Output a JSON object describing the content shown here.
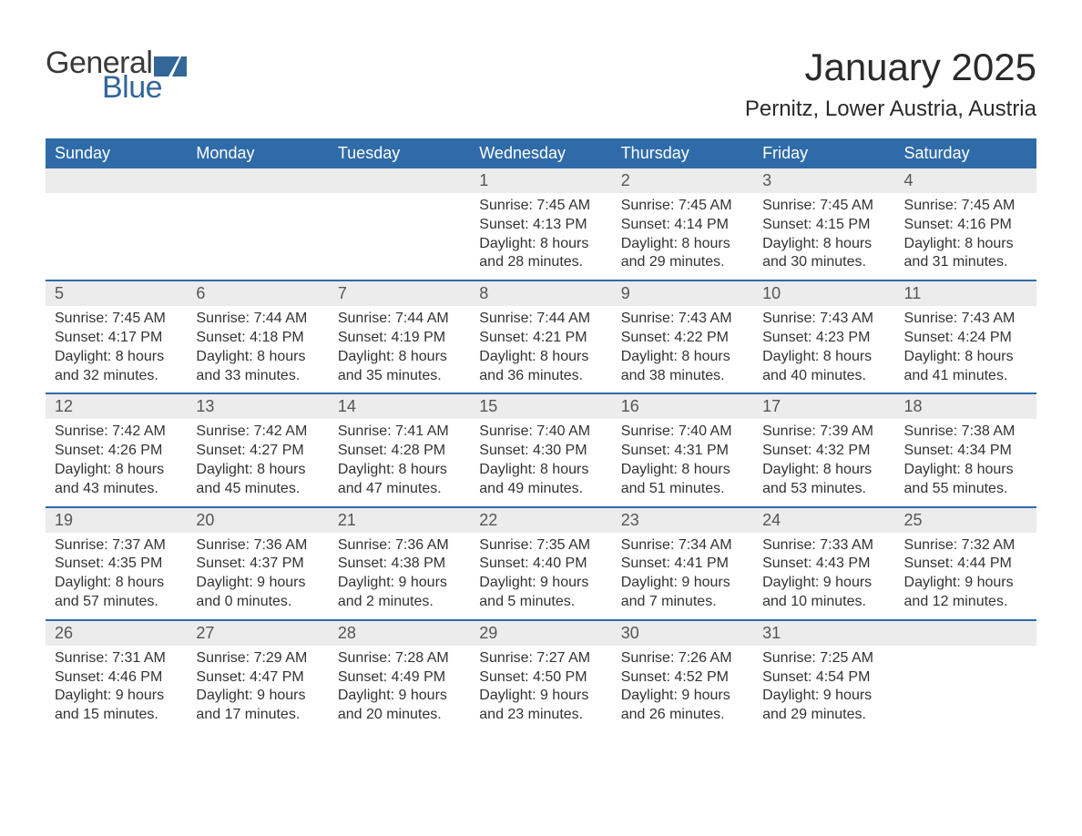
{
  "brand": {
    "word1": "General",
    "word2": "Blue",
    "word1_color": "#3a3a3a",
    "word2_color": "#336699",
    "icon_color": "#336699",
    "font_size": 34
  },
  "title": {
    "month": "January 2025",
    "location": "Pernitz, Lower Austria, Austria",
    "month_fontsize": 42,
    "location_fontsize": 24,
    "color": "#2a2a2a"
  },
  "styles": {
    "header_bg": "#2f6ba8",
    "header_text": "#ffffff",
    "daynum_bg": "#ececec",
    "daynum_text": "#555555",
    "week_divider": "#2f6ba8",
    "body_text": "#333333",
    "page_bg": "#ffffff",
    "weekday_fontsize": 18,
    "daynum_fontsize": 18,
    "detail_fontsize": 16
  },
  "weekdays": [
    "Sunday",
    "Monday",
    "Tuesday",
    "Wednesday",
    "Thursday",
    "Friday",
    "Saturday"
  ],
  "weeks": [
    [
      null,
      null,
      null,
      {
        "day": "1",
        "sunrise": "Sunrise: 7:45 AM",
        "sunset": "Sunset: 4:13 PM",
        "daylight": "Daylight: 8 hours and 28 minutes."
      },
      {
        "day": "2",
        "sunrise": "Sunrise: 7:45 AM",
        "sunset": "Sunset: 4:14 PM",
        "daylight": "Daylight: 8 hours and 29 minutes."
      },
      {
        "day": "3",
        "sunrise": "Sunrise: 7:45 AM",
        "sunset": "Sunset: 4:15 PM",
        "daylight": "Daylight: 8 hours and 30 minutes."
      },
      {
        "day": "4",
        "sunrise": "Sunrise: 7:45 AM",
        "sunset": "Sunset: 4:16 PM",
        "daylight": "Daylight: 8 hours and 31 minutes."
      }
    ],
    [
      {
        "day": "5",
        "sunrise": "Sunrise: 7:45 AM",
        "sunset": "Sunset: 4:17 PM",
        "daylight": "Daylight: 8 hours and 32 minutes."
      },
      {
        "day": "6",
        "sunrise": "Sunrise: 7:44 AM",
        "sunset": "Sunset: 4:18 PM",
        "daylight": "Daylight: 8 hours and 33 minutes."
      },
      {
        "day": "7",
        "sunrise": "Sunrise: 7:44 AM",
        "sunset": "Sunset: 4:19 PM",
        "daylight": "Daylight: 8 hours and 35 minutes."
      },
      {
        "day": "8",
        "sunrise": "Sunrise: 7:44 AM",
        "sunset": "Sunset: 4:21 PM",
        "daylight": "Daylight: 8 hours and 36 minutes."
      },
      {
        "day": "9",
        "sunrise": "Sunrise: 7:43 AM",
        "sunset": "Sunset: 4:22 PM",
        "daylight": "Daylight: 8 hours and 38 minutes."
      },
      {
        "day": "10",
        "sunrise": "Sunrise: 7:43 AM",
        "sunset": "Sunset: 4:23 PM",
        "daylight": "Daylight: 8 hours and 40 minutes."
      },
      {
        "day": "11",
        "sunrise": "Sunrise: 7:43 AM",
        "sunset": "Sunset: 4:24 PM",
        "daylight": "Daylight: 8 hours and 41 minutes."
      }
    ],
    [
      {
        "day": "12",
        "sunrise": "Sunrise: 7:42 AM",
        "sunset": "Sunset: 4:26 PM",
        "daylight": "Daylight: 8 hours and 43 minutes."
      },
      {
        "day": "13",
        "sunrise": "Sunrise: 7:42 AM",
        "sunset": "Sunset: 4:27 PM",
        "daylight": "Daylight: 8 hours and 45 minutes."
      },
      {
        "day": "14",
        "sunrise": "Sunrise: 7:41 AM",
        "sunset": "Sunset: 4:28 PM",
        "daylight": "Daylight: 8 hours and 47 minutes."
      },
      {
        "day": "15",
        "sunrise": "Sunrise: 7:40 AM",
        "sunset": "Sunset: 4:30 PM",
        "daylight": "Daylight: 8 hours and 49 minutes."
      },
      {
        "day": "16",
        "sunrise": "Sunrise: 7:40 AM",
        "sunset": "Sunset: 4:31 PM",
        "daylight": "Daylight: 8 hours and 51 minutes."
      },
      {
        "day": "17",
        "sunrise": "Sunrise: 7:39 AM",
        "sunset": "Sunset: 4:32 PM",
        "daylight": "Daylight: 8 hours and 53 minutes."
      },
      {
        "day": "18",
        "sunrise": "Sunrise: 7:38 AM",
        "sunset": "Sunset: 4:34 PM",
        "daylight": "Daylight: 8 hours and 55 minutes."
      }
    ],
    [
      {
        "day": "19",
        "sunrise": "Sunrise: 7:37 AM",
        "sunset": "Sunset: 4:35 PM",
        "daylight": "Daylight: 8 hours and 57 minutes."
      },
      {
        "day": "20",
        "sunrise": "Sunrise: 7:36 AM",
        "sunset": "Sunset: 4:37 PM",
        "daylight": "Daylight: 9 hours and 0 minutes."
      },
      {
        "day": "21",
        "sunrise": "Sunrise: 7:36 AM",
        "sunset": "Sunset: 4:38 PM",
        "daylight": "Daylight: 9 hours and 2 minutes."
      },
      {
        "day": "22",
        "sunrise": "Sunrise: 7:35 AM",
        "sunset": "Sunset: 4:40 PM",
        "daylight": "Daylight: 9 hours and 5 minutes."
      },
      {
        "day": "23",
        "sunrise": "Sunrise: 7:34 AM",
        "sunset": "Sunset: 4:41 PM",
        "daylight": "Daylight: 9 hours and 7 minutes."
      },
      {
        "day": "24",
        "sunrise": "Sunrise: 7:33 AM",
        "sunset": "Sunset: 4:43 PM",
        "daylight": "Daylight: 9 hours and 10 minutes."
      },
      {
        "day": "25",
        "sunrise": "Sunrise: 7:32 AM",
        "sunset": "Sunset: 4:44 PM",
        "daylight": "Daylight: 9 hours and 12 minutes."
      }
    ],
    [
      {
        "day": "26",
        "sunrise": "Sunrise: 7:31 AM",
        "sunset": "Sunset: 4:46 PM",
        "daylight": "Daylight: 9 hours and 15 minutes."
      },
      {
        "day": "27",
        "sunrise": "Sunrise: 7:29 AM",
        "sunset": "Sunset: 4:47 PM",
        "daylight": "Daylight: 9 hours and 17 minutes."
      },
      {
        "day": "28",
        "sunrise": "Sunrise: 7:28 AM",
        "sunset": "Sunset: 4:49 PM",
        "daylight": "Daylight: 9 hours and 20 minutes."
      },
      {
        "day": "29",
        "sunrise": "Sunrise: 7:27 AM",
        "sunset": "Sunset: 4:50 PM",
        "daylight": "Daylight: 9 hours and 23 minutes."
      },
      {
        "day": "30",
        "sunrise": "Sunrise: 7:26 AM",
        "sunset": "Sunset: 4:52 PM",
        "daylight": "Daylight: 9 hours and 26 minutes."
      },
      {
        "day": "31",
        "sunrise": "Sunrise: 7:25 AM",
        "sunset": "Sunset: 4:54 PM",
        "daylight": "Daylight: 9 hours and 29 minutes."
      },
      null
    ]
  ]
}
